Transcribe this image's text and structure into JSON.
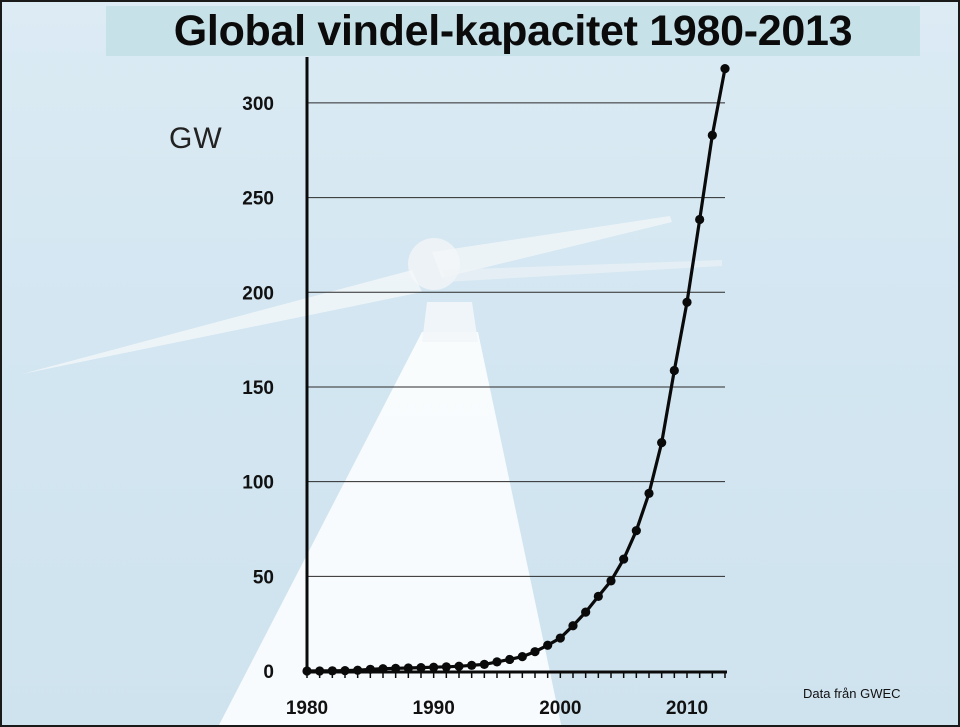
{
  "title": "Global vindel-kapacitet 1980-2013",
  "source": "Data från GWEC",
  "colors": {
    "line": "#0a0a0a",
    "marker": "#0a0a0a",
    "grid": "#2a2a2a",
    "title_band": "#c7e1e8",
    "background": "#d3e6f1"
  },
  "chart_data": {
    "type": "line",
    "title": "Global vindel-kapacitet 1980-2013",
    "xlabel": "",
    "ylabel": "GW",
    "x": [
      1980,
      1981,
      1982,
      1983,
      1984,
      1985,
      1986,
      1987,
      1988,
      1989,
      1990,
      1991,
      1992,
      1993,
      1994,
      1995,
      1996,
      1997,
      1998,
      1999,
      2000,
      2001,
      2002,
      2003,
      2004,
      2005,
      2006,
      2007,
      2008,
      2009,
      2010,
      2011,
      2012,
      2013
    ],
    "series": [
      {
        "values": [
          0.01,
          0.03,
          0.1,
          0.2,
          0.4,
          0.9,
          1.2,
          1.4,
          1.6,
          1.8,
          2.0,
          2.2,
          2.5,
          3.0,
          3.5,
          4.8,
          6.1,
          7.6,
          10.2,
          13.6,
          17.4,
          23.9,
          31.1,
          39.4,
          47.6,
          59.1,
          74.1,
          93.8,
          120.6,
          158.7,
          194.7,
          238.4,
          282.9,
          318.1
        ]
      }
    ],
    "xlim": [
      1980,
      2013
    ],
    "ylim": [
      0,
      320
    ],
    "x_ticks": [
      "1980",
      "1990",
      "2000",
      "2010"
    ],
    "y_ticks": [
      "0",
      "50",
      "100",
      "150",
      "200",
      "250",
      "300"
    ],
    "grid": "horizontal",
    "annotations": [
      "Data från GWEC"
    ]
  }
}
